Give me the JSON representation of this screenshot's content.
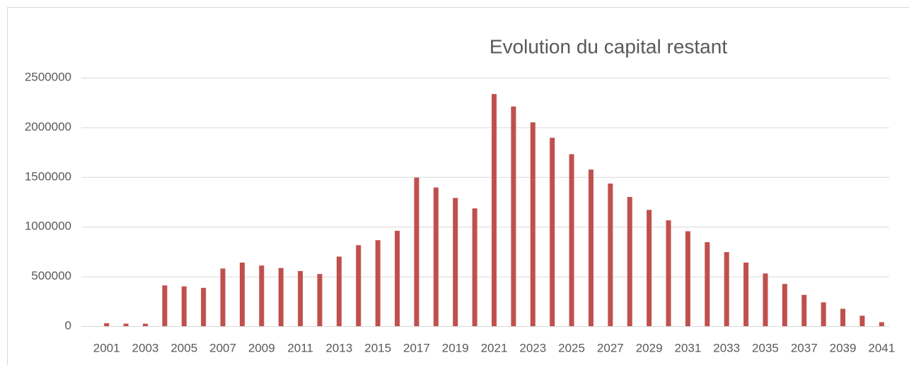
{
  "chart_data": {
    "type": "bar",
    "title": "Evolution du capital restant",
    "categories": [
      2001,
      null,
      2003,
      null,
      2005,
      null,
      2007,
      null,
      2009,
      null,
      2011,
      null,
      2013,
      null,
      2015,
      null,
      2017,
      null,
      2019,
      null,
      2021,
      null,
      2023,
      null,
      2025,
      null,
      2027,
      null,
      2029,
      null,
      2031,
      null,
      2033,
      null,
      2035,
      null,
      2037,
      null,
      2039,
      null,
      2041
    ],
    "values": [
      30000,
      25000,
      25000,
      410000,
      400000,
      385000,
      580000,
      640000,
      610000,
      585000,
      555000,
      525000,
      700000,
      815000,
      865000,
      960000,
      1495000,
      1395000,
      1290000,
      1185000,
      2335000,
      2210000,
      2050000,
      1895000,
      1730000,
      1575000,
      1435000,
      1300000,
      1170000,
      1065000,
      955000,
      845000,
      745000,
      640000,
      530000,
      425000,
      315000,
      240000,
      175000,
      105000,
      40000
    ],
    "color": "#c0504d",
    "ylim": [
      0,
      2500000
    ],
    "yticks": [
      0,
      500000,
      1000000,
      1500000,
      2000000,
      2500000
    ],
    "grid": true
  }
}
